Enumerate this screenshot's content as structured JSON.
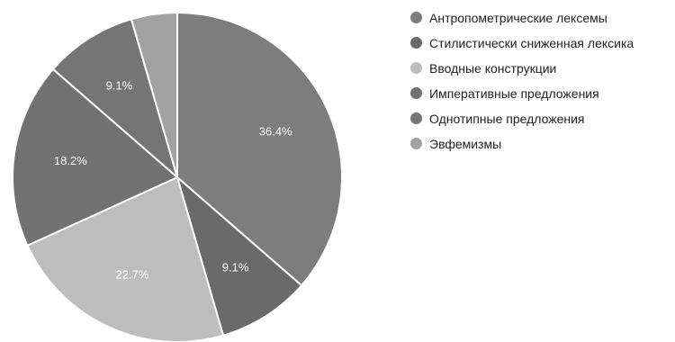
{
  "chart_data": {
    "type": "pie",
    "start_angle_deg": 0,
    "direction": "clockwise",
    "legend_position": "right",
    "slices": [
      {
        "label": "Антропометрические лексемы",
        "value": 36.4,
        "display": "36.4%",
        "color": "#7d7d7d"
      },
      {
        "label": "Стилистически сниженная лексика",
        "value": 9.1,
        "display": "9.1%",
        "color": "#6a6a6a"
      },
      {
        "label": "Вводные конструкции",
        "value": 22.7,
        "display": "22.7%",
        "color": "#bdbdbd"
      },
      {
        "label": "Императивные предложения",
        "value": 18.2,
        "display": "18.2%",
        "color": "#727272"
      },
      {
        "label": "Однотипные предложения",
        "value": 9.1,
        "display": "9.1%",
        "color": "#757575"
      },
      {
        "label": "Эвфемизмы",
        "value": 4.5,
        "display": "",
        "color": "#a2a2a2"
      }
    ]
  }
}
